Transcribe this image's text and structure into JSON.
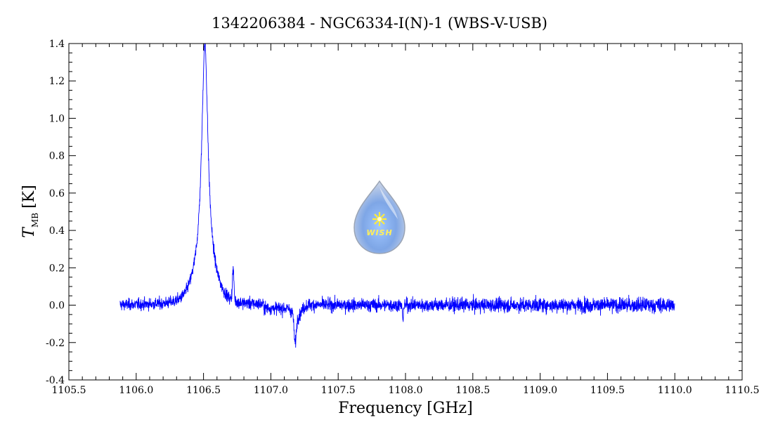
{
  "chart_data": {
    "type": "line",
    "title": "1342206384 - NGC6334-I(N)-1 (WBS-V-USB)",
    "xlabel": "Frequency [GHz]",
    "ylabel_symbol": "T",
    "ylabel_subscript": "MB",
    "ylabel_unit": "[K]",
    "xlim": [
      1105.5,
      1110.5
    ],
    "ylim": [
      -0.4,
      1.4
    ],
    "x_ticks": [
      "1105.5",
      "1106.0",
      "1106.5",
      "1107.0",
      "1107.5",
      "1108.0",
      "1108.5",
      "1109.0",
      "1109.5",
      "1110.0",
      "1110.5"
    ],
    "y_ticks": [
      "-0.4",
      "-0.2",
      "0.0",
      "0.2",
      "0.4",
      "0.6",
      "0.8",
      "1.0",
      "1.2",
      "1.4"
    ],
    "grid": false,
    "series": [
      {
        "color": "#0000ff",
        "x_range": [
          1105.88,
          1110.0
        ],
        "noise_rms": 0.03,
        "features": [
          {
            "x": 1106.51,
            "peak": 1.32,
            "kind": "emission"
          },
          {
            "x": 1106.72,
            "peak": 0.25,
            "kind": "emission"
          },
          {
            "x": 1107.18,
            "peak": -0.26,
            "kind": "absorption"
          },
          {
            "x": 1107.98,
            "peak": -0.15,
            "kind": "absorption"
          }
        ]
      }
    ],
    "logo_text": "WISH"
  }
}
